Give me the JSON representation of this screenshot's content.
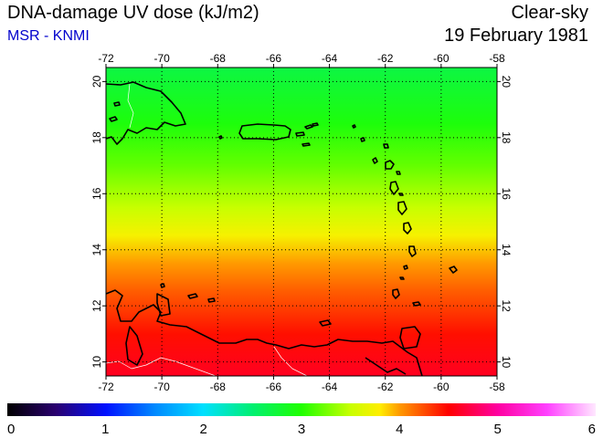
{
  "header": {
    "title": "DNA-damage UV dose (kJ/m2)",
    "subtitle": "MSR - KNMI",
    "sky_type": "Clear-sky",
    "date": "19 February 1981"
  },
  "map": {
    "lon_range": [
      -72,
      -58
    ],
    "lat_range": [
      9.5,
      20.5
    ],
    "lon_ticks": [
      -72,
      -70,
      -68,
      -66,
      -64,
      -62,
      -60,
      -58
    ],
    "lon_tick_labels": [
      "-72",
      "-70",
      "-68",
      "-66",
      "-64",
      "-62",
      "-60",
      "-58"
    ],
    "lat_ticks": [
      10,
      12,
      14,
      16,
      18,
      20
    ],
    "lat_tick_labels": [
      "10",
      "12",
      "14",
      "16",
      "18",
      "20"
    ],
    "gridlines": "dotted",
    "field_gradient_by_lat": [
      {
        "lat": 20.5,
        "value": 2.7
      },
      {
        "lat": 18.5,
        "value": 2.95
      },
      {
        "lat": 17.0,
        "value": 3.2
      },
      {
        "lat": 15.5,
        "value": 3.5
      },
      {
        "lat": 14.5,
        "value": 3.75
      },
      {
        "lat": 13.5,
        "value": 4.0
      },
      {
        "lat": 12.5,
        "value": 4.2
      },
      {
        "lat": 11.0,
        "value": 4.45
      },
      {
        "lat": 9.5,
        "value": 4.6
      }
    ]
  },
  "colorbar": {
    "min": 0,
    "max": 6,
    "labels": [
      "0",
      "1",
      "2",
      "3",
      "4",
      "5",
      "6"
    ],
    "stops": [
      {
        "value": 0.0,
        "color": "#000000"
      },
      {
        "value": 0.5,
        "color": "#2a0070"
      },
      {
        "value": 1.0,
        "color": "#0010ff"
      },
      {
        "value": 1.5,
        "color": "#0088ff"
      },
      {
        "value": 2.0,
        "color": "#00e0ff"
      },
      {
        "value": 2.5,
        "color": "#00f070"
      },
      {
        "value": 3.0,
        "color": "#20ff00"
      },
      {
        "value": 3.5,
        "color": "#c8ff00"
      },
      {
        "value": 3.8,
        "color": "#ffee00"
      },
      {
        "value": 4.0,
        "color": "#ff9900"
      },
      {
        "value": 4.5,
        "color": "#ff0000"
      },
      {
        "value": 5.0,
        "color": "#ff00a0"
      },
      {
        "value": 5.5,
        "color": "#ff40ff"
      },
      {
        "value": 6.0,
        "color": "#ffe8ff"
      }
    ]
  }
}
